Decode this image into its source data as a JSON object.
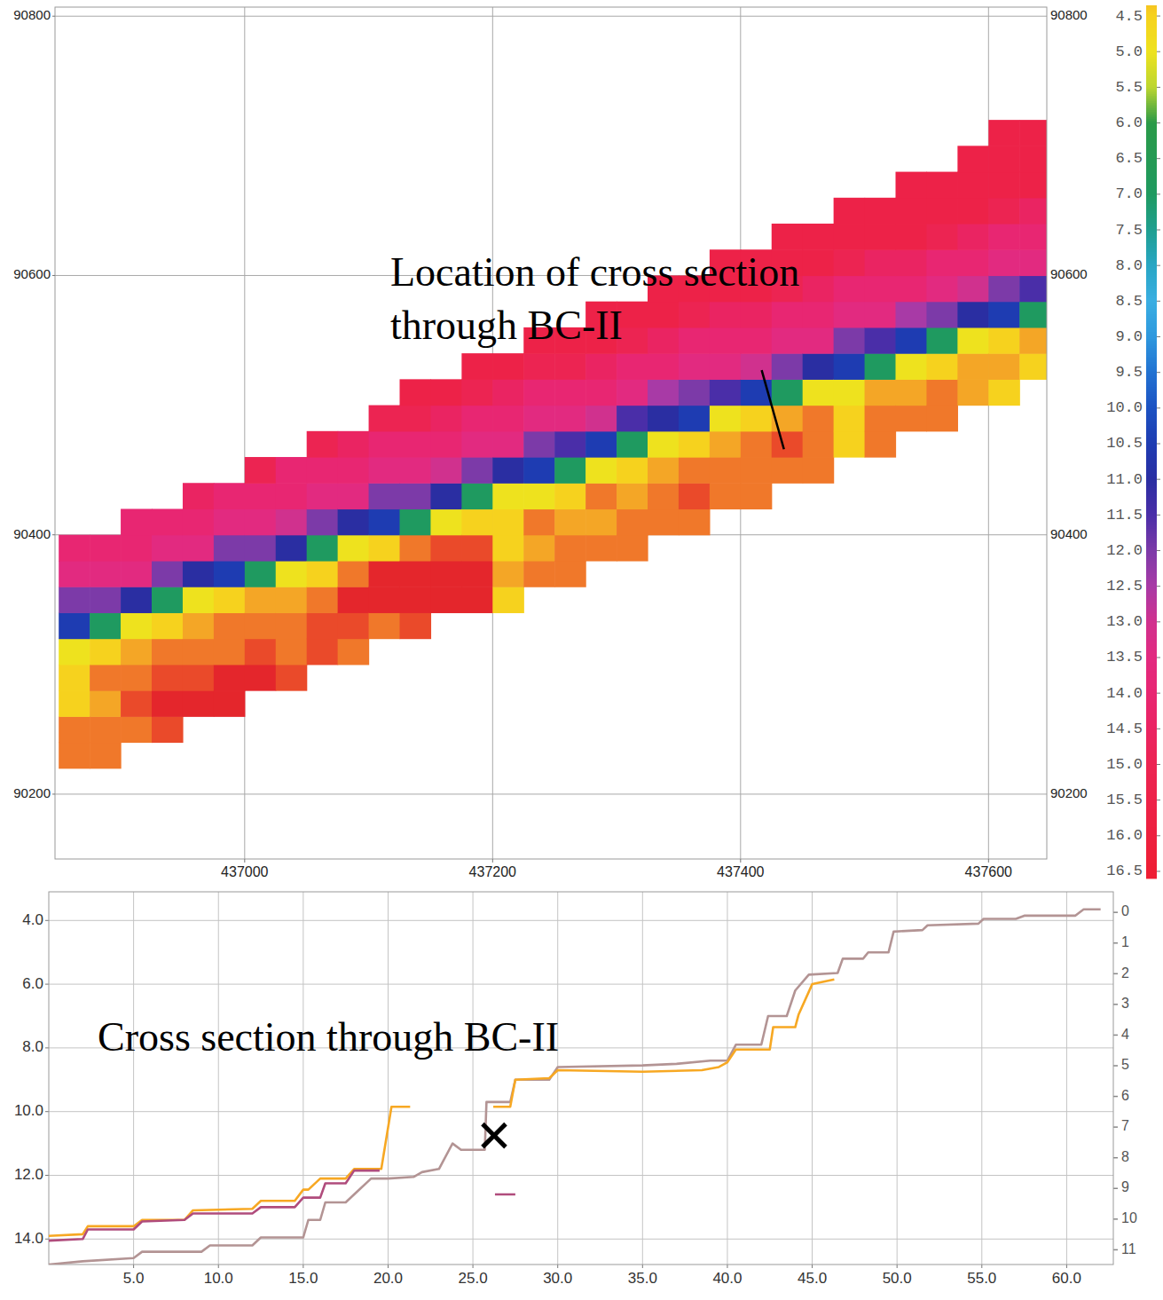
{
  "chart_data": [
    {
      "type": "heatmap",
      "annotation": "Location of cross section through BC-II",
      "xlim": [
        436847,
        437647
      ],
      "ylim": [
        90150,
        90807
      ],
      "xticks": [
        437000,
        437200,
        437400,
        437600
      ],
      "yticks": [
        90200,
        90400,
        90600,
        90800
      ],
      "grid": true,
      "cell_width": 25,
      "cell_height": 20,
      "columns": [
        {
          "x": 436862.5,
          "y0": 90230,
          "depth": [
            3.5,
            3.5,
            4.5,
            4.5,
            5.0,
            10.5,
            12.0,
            13.5,
            14.0
          ]
        },
        {
          "x": 436887.5,
          "y0": 90230,
          "depth": [
            3.5,
            3.5,
            4.0,
            3.5,
            4.5,
            7.0,
            12.0,
            13.5,
            14.0
          ]
        },
        {
          "x": 436912.5,
          "y0": 90250,
          "depth": [
            3.5,
            3.0,
            3.5,
            4.0,
            5.0,
            11.0,
            13.5,
            14.0,
            14.0
          ]
        },
        {
          "x": 436937.5,
          "y0": 90250,
          "depth": [
            3.0,
            2.5,
            3.0,
            3.5,
            4.5,
            7.0,
            12.0,
            13.5,
            14.0
          ]
        },
        {
          "x": 436962.5,
          "y0": 90270,
          "depth": [
            2.5,
            3.0,
            3.5,
            4.0,
            5.0,
            11.0,
            13.5,
            14.0,
            14.5
          ]
        },
        {
          "x": 436987.5,
          "y0": 90270,
          "depth": [
            2.5,
            2.5,
            3.5,
            3.5,
            4.5,
            10.5,
            12.0,
            13.5,
            14.0
          ]
        },
        {
          "x": 437012.5,
          "y0": 90290,
          "depth": [
            2.5,
            3.0,
            3.5,
            4.0,
            7.0,
            12.0,
            13.5,
            14.0,
            15.0
          ]
        },
        {
          "x": 437037.5,
          "y0": 90290,
          "depth": [
            3.0,
            3.5,
            3.5,
            4.0,
            5.0,
            11.0,
            13.0,
            14.0,
            14.0
          ]
        },
        {
          "x": 437062.5,
          "y0": 90310,
          "depth": [
            3.0,
            3.0,
            3.5,
            4.5,
            7.0,
            12.0,
            13.5,
            14.0,
            15.0
          ]
        },
        {
          "x": 437087.5,
          "y0": 90310,
          "depth": [
            3.5,
            3.0,
            2.5,
            3.5,
            5.0,
            11.0,
            13.5,
            14.0,
            14.5
          ]
        },
        {
          "x": 437112.5,
          "y0": 90330,
          "depth": [
            3.5,
            2.5,
            2.5,
            4.5,
            10.5,
            12.0,
            13.5,
            14.0,
            15.0
          ]
        },
        {
          "x": 437137.5,
          "y0": 90330,
          "depth": [
            3.0,
            2.5,
            2.5,
            3.5,
            7.0,
            12.0,
            13.5,
            14.0,
            15.0,
            15.5
          ]
        },
        {
          "x": 437162.5,
          "y0": 90350,
          "depth": [
            2.5,
            2.5,
            3.0,
            5.0,
            11.0,
            13.0,
            14.0,
            14.5,
            15.5
          ]
        },
        {
          "x": 437187.5,
          "y0": 90350,
          "depth": [
            2.5,
            2.5,
            3.0,
            4.5,
            7.0,
            12.0,
            13.5,
            14.0,
            15.0,
            15.5
          ]
        },
        {
          "x": 437212.5,
          "y0": 90350,
          "depth": [
            4.5,
            4.0,
            4.5,
            4.5,
            5.0,
            11.0,
            13.5,
            14.0,
            14.5,
            15.5
          ]
        },
        {
          "x": 437237.5,
          "y0": 90370,
          "depth": [
            3.5,
            4.0,
            3.5,
            5.0,
            10.5,
            12.0,
            13.5,
            14.0,
            15.0,
            15.5
          ]
        },
        {
          "x": 437262.5,
          "y0": 90370,
          "depth": [
            3.5,
            3.5,
            4.0,
            4.5,
            7.0,
            11.5,
            13.5,
            14.0,
            15.0,
            15.5
          ]
        },
        {
          "x": 437287.5,
          "y0": 90390,
          "depth": [
            3.5,
            4.0,
            3.5,
            5.0,
            10.5,
            13.0,
            14.0,
            14.5,
            15.5,
            15.5
          ]
        },
        {
          "x": 437312.5,
          "y0": 90390,
          "depth": [
            3.5,
            3.5,
            4.0,
            4.5,
            7.0,
            11.5,
            13.5,
            14.0,
            15.0,
            15.5
          ]
        },
        {
          "x": 437337.5,
          "y0": 90410,
          "depth": [
            3.5,
            3.5,
            4.0,
            5.0,
            11.0,
            12.5,
            14.0,
            14.5,
            15.5,
            15.5
          ]
        },
        {
          "x": 437362.5,
          "y0": 90410,
          "depth": [
            3.5,
            3.0,
            3.5,
            4.5,
            10.5,
            12.0,
            13.5,
            14.0,
            15.0,
            15.5
          ]
        },
        {
          "x": 437387.5,
          "y0": 90430,
          "depth": [
            3.5,
            3.5,
            4.0,
            5.0,
            11.5,
            13.5,
            14.0,
            14.5,
            15.5,
            15.5
          ]
        },
        {
          "x": 437412.5,
          "y0": 90430,
          "depth": [
            3.5,
            3.5,
            3.5,
            4.5,
            10.5,
            13.0,
            14.0,
            14.5,
            15.5,
            15.5
          ]
        },
        {
          "x": 437437.5,
          "y0": 90450,
          "depth": [
            3.5,
            3.0,
            4.0,
            7.0,
            12.0,
            13.5,
            14.0,
            15.0,
            15.5,
            15.5
          ]
        },
        {
          "x": 437462.5,
          "y0": 90450,
          "depth": [
            3.5,
            3.5,
            3.5,
            5.0,
            11.0,
            13.5,
            14.0,
            14.5,
            15.5,
            15.5
          ]
        },
        {
          "x": 437487.5,
          "y0": 90470,
          "depth": [
            4.5,
            4.5,
            5.0,
            10.5,
            12.0,
            13.5,
            14.0,
            15.0,
            15.5,
            15.5
          ]
        },
        {
          "x": 437512.5,
          "y0": 90470,
          "depth": [
            3.5,
            3.5,
            4.0,
            7.0,
            11.5,
            13.5,
            14.0,
            14.5,
            15.5,
            15.5
          ]
        },
        {
          "x": 437537.5,
          "y0": 90490,
          "depth": [
            3.5,
            4.0,
            5.0,
            10.5,
            12.5,
            14.0,
            14.5,
            15.5,
            15.5,
            15.5
          ]
        },
        {
          "x": 437562.5,
          "y0": 90490,
          "depth": [
            3.5,
            3.5,
            4.5,
            7.0,
            12.0,
            13.5,
            14.0,
            15.0,
            15.5,
            15.5
          ]
        },
        {
          "x": 437587.5,
          "y0": 90510,
          "depth": [
            4.0,
            4.0,
            5.0,
            11.0,
            13.0,
            14.0,
            14.5,
            15.5,
            15.5,
            15.5
          ]
        },
        {
          "x": 437612.5,
          "y0": 90510,
          "depth": [
            4.5,
            4.0,
            4.5,
            10.5,
            12.0,
            13.5,
            14.0,
            15.0,
            15.5,
            15.5,
            15.5
          ]
        },
        {
          "x": 437637.5,
          "y0": 90530,
          "depth": [
            4.5,
            4.0,
            7.0,
            11.5,
            13.5,
            14.0,
            14.5,
            15.5,
            15.5,
            15.5
          ]
        }
      ],
      "colorbar": {
        "range": [
          4.35,
          16.6
        ],
        "ticks": [
          4.5,
          {
            "value": 5,
            "label": "5.0"
          },
          5.5,
          {
            "value": 6,
            "label": "6.0"
          },
          6.5,
          {
            "value": 7,
            "label": "7.0"
          },
          7.5,
          {
            "value": 8,
            "label": "8.0"
          },
          8.5,
          {
            "value": 9,
            "label": "9.0"
          },
          9.5,
          {
            "value": 10,
            "label": "10.0"
          },
          10.5,
          {
            "value": 11,
            "label": "11.0"
          },
          11.5,
          {
            "value": 12,
            "label": "12.0"
          },
          12.5,
          {
            "value": 13,
            "label": "13.0"
          },
          13.5,
          {
            "value": 14,
            "label": "14.0"
          },
          14.5,
          {
            "value": 15,
            "label": "15.0"
          },
          15.5,
          {
            "value": 16,
            "label": "16.0"
          },
          16.5
        ]
      },
      "profile_line": {
        "x": [
          437417,
          437435
        ],
        "y": [
          90527,
          90466
        ]
      }
    },
    {
      "type": "line",
      "title": "Cross section through BC-II",
      "xlim": [
        0,
        62.75
      ],
      "ylim": [
        14.8,
        3.1
      ],
      "xticks": [
        {
          "value": 5,
          "label": "5.0"
        },
        {
          "value": 10,
          "label": "10.0"
        },
        {
          "value": 15,
          "label": "15.0"
        },
        {
          "value": 20,
          "label": "20.0"
        },
        {
          "value": 25,
          "label": "25.0"
        },
        {
          "value": 30,
          "label": "30.0"
        },
        {
          "value": 35,
          "label": "35.0"
        },
        {
          "value": 40,
          "label": "40.0"
        },
        {
          "value": 45,
          "label": "45.0"
        },
        {
          "value": 50,
          "label": "50.0"
        },
        {
          "value": 55,
          "label": "55.0"
        },
        {
          "value": 60,
          "label": "60.0"
        }
      ],
      "yticks": [
        {
          "value": 4,
          "label": "4.0"
        },
        {
          "value": 6,
          "label": "6.0"
        },
        {
          "value": 8,
          "label": "8.0"
        },
        {
          "value": 10,
          "label": "10.0"
        },
        {
          "value": 12,
          "label": "12.0"
        },
        {
          "value": 14,
          "label": "14.0"
        }
      ],
      "y2lim": [
        11.48,
        -0.67
      ],
      "y2ticks": [
        0,
        1,
        2,
        3,
        4,
        5,
        6,
        7,
        8,
        9,
        10,
        11
      ],
      "grid": true,
      "series": [
        {
          "color": "#b39494",
          "x": [
            0,
            2,
            5,
            5.5,
            9,
            9.5,
            12,
            12.5,
            15,
            15.3,
            16,
            16.3,
            17.5,
            18,
            19,
            20,
            21.5,
            22,
            23,
            23.8,
            24.3,
            25.7,
            25.8,
            27.2,
            27.5,
            29.5,
            30,
            35,
            37,
            39,
            40,
            40.5,
            42,
            42.4,
            43.5,
            44,
            44.8,
            46.5,
            46.8,
            48,
            48.3,
            49.5,
            49.8,
            51.5,
            51.8,
            54.8,
            55.1,
            57,
            57.5,
            60.5,
            61,
            62
          ],
          "values": [
            14.8,
            14.7,
            14.6,
            14.4,
            14.4,
            14.2,
            14.2,
            13.95,
            13.95,
            13.4,
            13.4,
            12.85,
            12.85,
            12.6,
            12.1,
            12.1,
            12.05,
            11.9,
            11.8,
            11.0,
            11.2,
            11.2,
            9.7,
            9.7,
            9.0,
            9.0,
            8.6,
            8.55,
            8.5,
            8.4,
            8.4,
            7.9,
            7.9,
            7.0,
            7.0,
            6.2,
            5.7,
            5.65,
            5.2,
            5.2,
            5.0,
            5.0,
            4.35,
            4.3,
            4.15,
            4.1,
            3.95,
            3.95,
            3.85,
            3.85,
            3.65,
            3.65
          ]
        },
        {
          "color": "#f7a823",
          "x": [
            0,
            2,
            2.3,
            5,
            5.5,
            8,
            8.5,
            12,
            12.5,
            14.5,
            15,
            15.3,
            16,
            17.5,
            18,
            19.6,
            20.2,
            21.3,
            23.5,
            26.2,
            27.2,
            27.5,
            29.5,
            30,
            35,
            38.5,
            39.5,
            40,
            40.5,
            42.5,
            42.7,
            44,
            44.2,
            45,
            46.3
          ],
          "values": [
            13.9,
            13.85,
            13.6,
            13.6,
            13.4,
            13.4,
            13.1,
            13.05,
            12.8,
            12.8,
            12.45,
            12.45,
            12.1,
            12.1,
            11.8,
            11.8,
            9.85,
            9.85,
            null,
            9.85,
            9.85,
            9.0,
            8.95,
            8.7,
            8.75,
            8.7,
            8.6,
            8.45,
            8.05,
            8.05,
            7.35,
            7.35,
            6.95,
            6.0,
            5.85
          ]
        },
        {
          "color": "#b04c7c",
          "x": [
            0,
            2,
            2.3,
            5,
            5.5,
            8,
            8.5,
            12,
            12.5,
            14.5,
            15,
            16,
            16.3,
            17.5,
            18,
            19.5,
            23,
            26.3,
            27.5
          ],
          "values": [
            14.05,
            14.0,
            13.7,
            13.7,
            13.45,
            13.4,
            13.2,
            13.2,
            13.0,
            13.0,
            12.7,
            12.7,
            12.25,
            12.25,
            11.85,
            11.85,
            null,
            12.6,
            12.6
          ]
        }
      ],
      "markers": [
        {
          "x": 26.25,
          "y": 10.75,
          "marker": "x"
        }
      ]
    }
  ]
}
